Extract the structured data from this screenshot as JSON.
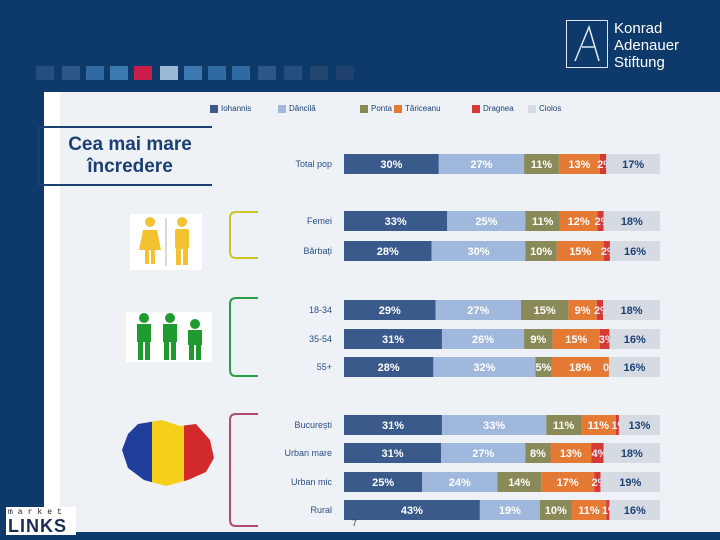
{
  "logo": {
    "line1": "Konrad",
    "line2": "Adenauer",
    "line3": "Stiftung"
  },
  "slide": {
    "title_line1": "Cea mai mare",
    "title_line2": "încredere",
    "page_number": "7"
  },
  "brand": {
    "top": "market",
    "main": "LINKS"
  },
  "colors": {
    "banner": "#0d3a6b",
    "gender_brace": "#c9c62a",
    "age_brace": "#2aa04a",
    "area_brace": "#b04c74"
  },
  "chart_data": {
    "type": "bar",
    "orientation": "horizontal",
    "stacked": true,
    "percent_scale": [
      0,
      100
    ],
    "series": [
      {
        "name": "Iohannis",
        "color": "#3a5a8c",
        "text_color": "#ffffff"
      },
      {
        "name": "Dăncilă",
        "color": "#9fb8dc",
        "text_color": "#ffffff"
      },
      {
        "name": "Ponta",
        "color": "#8a8a58",
        "text_color": "#ffffff"
      },
      {
        "name": "Tăriceanu",
        "color": "#e57a35",
        "text_color": "#ffffff"
      },
      {
        "name": "Dragnea",
        "color": "#d63a36",
        "text_color": "#ffffff"
      },
      {
        "name": "Ciolos",
        "color": "#d6dbe3",
        "text_color": "#1c3f73"
      }
    ],
    "rows": [
      {
        "label": "Total pop",
        "group": "total",
        "values": [
          30,
          27,
          11,
          13,
          2,
          17
        ]
      },
      {
        "label": "Femei",
        "group": "gender",
        "values": [
          33,
          25,
          11,
          12,
          2,
          18
        ]
      },
      {
        "label": "Bărbați",
        "group": "gender",
        "values": [
          28,
          30,
          10,
          15,
          2,
          16
        ]
      },
      {
        "label": "18-34",
        "group": "age",
        "values": [
          29,
          27,
          15,
          9,
          2,
          18
        ]
      },
      {
        "label": "35-54",
        "group": "age",
        "values": [
          31,
          26,
          9,
          15,
          3,
          16
        ]
      },
      {
        "label": "55+",
        "group": "age",
        "values": [
          28,
          32,
          5,
          18,
          0,
          16
        ]
      },
      {
        "label": "București",
        "group": "area",
        "values": [
          31,
          33,
          11,
          11,
          1,
          13
        ]
      },
      {
        "label": "Urban mare",
        "group": "area",
        "values": [
          31,
          27,
          8,
          13,
          4,
          18
        ]
      },
      {
        "label": "Urban mic",
        "group": "area",
        "values": [
          25,
          24,
          14,
          17,
          2,
          19
        ]
      },
      {
        "label": "Rural",
        "group": "area",
        "values": [
          43,
          19,
          10,
          11,
          1,
          16
        ]
      }
    ]
  }
}
